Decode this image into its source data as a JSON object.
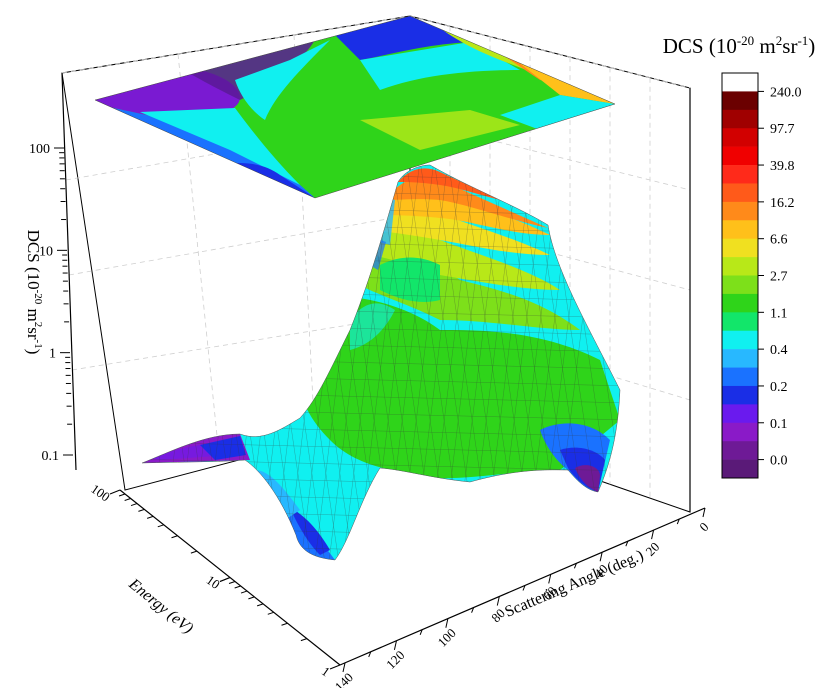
{
  "chart_data": {
    "type": "surface3d",
    "title": "",
    "zlabel": {
      "main": "DCS (10",
      "exp1": "-20",
      "mid": " m",
      "exp2": "2",
      "mid2": "sr",
      "exp3": "-1",
      "end": ")"
    },
    "xlabel": "Scattering Angle (deg.)",
    "ylabel": "Energy (eV)",
    "z_scale": "log",
    "y_scale": "log",
    "x_ticks": [
      "0",
      "20",
      "40",
      "60",
      "80",
      "100",
      "120",
      "140"
    ],
    "y_ticks": [
      "1",
      "10",
      "100"
    ],
    "z_ticks": [
      "0.1",
      "1",
      "10",
      "100"
    ],
    "colorbar": {
      "title": {
        "main": "DCS (10",
        "exp1": "-20",
        "mid": " m",
        "exp2": "2",
        "mid2": "sr",
        "exp3": "-1",
        "end": ")"
      },
      "labels": [
        "240.0",
        "97.7",
        "39.8",
        "16.2",
        "6.6",
        "2.7",
        "1.1",
        "0.4",
        "0.2",
        "0.1",
        "0.0"
      ],
      "colors": [
        "#ffffff",
        "#6b0000",
        "#a00000",
        "#d20000",
        "#f00000",
        "#ff2a1a",
        "#ff5a1a",
        "#ff8a1a",
        "#ffc01a",
        "#f0e020",
        "#b8e818",
        "#7de01a",
        "#2fd41a",
        "#12e66a",
        "#10f0f0",
        "#28b8ff",
        "#1a72ff",
        "#1a2ee6",
        "#6a1aee",
        "#8a1ac8",
        "#6e1a96",
        "#5a1a78"
      ]
    },
    "surface_grid": {
      "angles_deg": [
        0,
        20,
        40,
        60,
        80,
        100,
        120,
        140
      ],
      "energies_eV": [
        100,
        50,
        20,
        10,
        5,
        2,
        1
      ],
      "dcs": [
        [
          240.0,
          60.0,
          12.0,
          2.5,
          0.6,
          0.35,
          0.15
        ],
        [
          120.0,
          30.0,
          8.0,
          2.0,
          0.8,
          0.5,
          0.25
        ],
        [
          30.0,
          10.0,
          4.0,
          1.2,
          0.6,
          0.4,
          0.2
        ],
        [
          6.0,
          3.0,
          1.5,
          0.7,
          0.4,
          0.3,
          0.1
        ],
        [
          2.0,
          1.5,
          0.9,
          0.5,
          0.35,
          0.4,
          0.15
        ],
        [
          0.9,
          0.7,
          0.6,
          0.4,
          0.3,
          0.25,
          0.12
        ],
        [
          0.4,
          0.5,
          0.5,
          0.3,
          0.2,
          0.15,
          0.08
        ],
        [
          0.2,
          0.3,
          0.3,
          0.15,
          0.1,
          0.08,
          0.05
        ]
      ]
    }
  }
}
